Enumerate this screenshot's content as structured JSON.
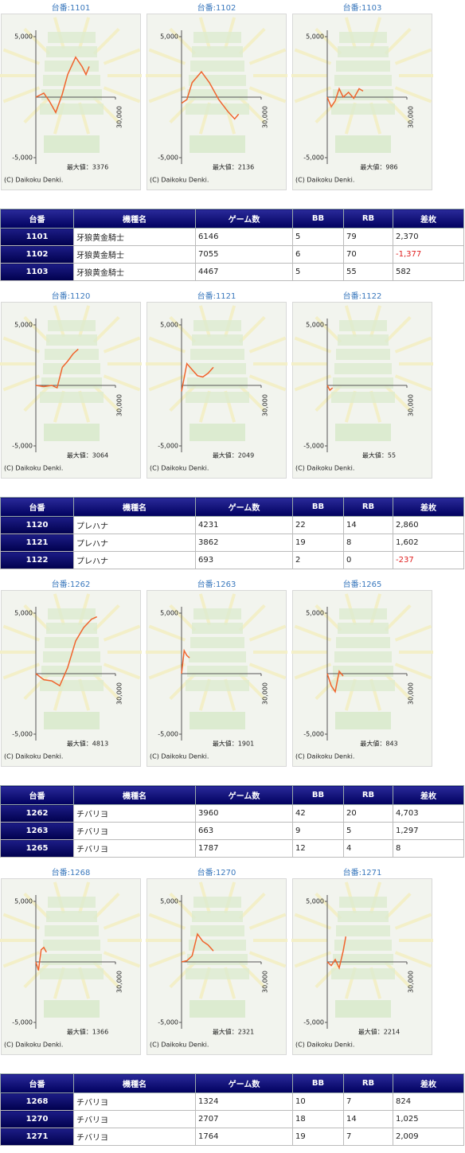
{
  "graph_axes": {
    "ylim": [
      -5000,
      5000
    ],
    "yticks": [
      {
        "value": 5000,
        "label": "5,000"
      },
      {
        "value": -5000,
        "label": "-5,000"
      }
    ],
    "xlim": [
      0,
      30000
    ],
    "xticks": [
      {
        "value": 30000,
        "label": "30,000"
      }
    ],
    "line_color": "#f0642d"
  },
  "groups": [
    {
      "graphs": [
        {
          "title": "台番:1101",
          "x": [
            0,
            3000,
            5100,
            7500,
            9900,
            12000,
            15000,
            17400,
            18900,
            20100
          ],
          "y": [
            0,
            330,
            -330,
            -1270,
            200,
            1870,
            3300,
            2530,
            1870,
            2530
          ],
          "max_label": "最大値：3376",
          "copyright": "(C) Daikoku Denki."
        },
        {
          "title": "台番:1102",
          "x": [
            0,
            2000,
            4000,
            7500,
            10500,
            14000,
            17500,
            20000,
            21500
          ],
          "y": [
            -500,
            -200,
            1200,
            2100,
            1200,
            -200,
            -1200,
            -1800,
            -1400
          ],
          "max_label": "最大値：2136",
          "copyright": "(C) Daikoku Denki."
        },
        {
          "title": "台番:1103",
          "x": [
            0,
            1500,
            3000,
            4500,
            6000,
            8000,
            10000,
            12000,
            13500
          ],
          "y": [
            0,
            -800,
            -300,
            700,
            0,
            400,
            -100,
            700,
            500
          ],
          "max_label": "最大値：986",
          "copyright": "(C) Daikoku Denki."
        }
      ],
      "table": {
        "header": [
          "台番",
          "機種名",
          "ゲーム数",
          "BB",
          "RB",
          "差枚"
        ],
        "rows": [
          [
            "1101",
            "牙狼黄金騎士",
            "6146",
            "5",
            "79",
            "2,370"
          ],
          [
            "1102",
            "牙狼黄金騎士",
            "7055",
            "6",
            "70",
            "-1,377"
          ],
          [
            "1103",
            "牙狼黄金騎士",
            "4467",
            "5",
            "55",
            "582"
          ]
        ]
      }
    },
    {
      "graphs": [
        {
          "title": "台番:1120",
          "x": [
            0,
            3000,
            6000,
            8000,
            10000,
            12000,
            14000,
            16000
          ],
          "y": [
            0,
            -100,
            0,
            -200,
            1500,
            2000,
            2600,
            3000
          ],
          "max_label": "最大値：3064",
          "copyright": "(C) Daikoku Denki."
        },
        {
          "title": "台番:1121",
          "x": [
            0,
            2000,
            4000,
            6000,
            8000,
            10000,
            12000
          ],
          "y": [
            -500,
            1800,
            1300,
            800,
            700,
            1000,
            1500
          ],
          "max_label": "最大値：2049",
          "copyright": "(C) Daikoku Denki."
        },
        {
          "title": "台番:1122",
          "x": [
            0,
            1000,
            2000
          ],
          "y": [
            0,
            -400,
            -200
          ],
          "max_label": "最大値：55",
          "copyright": "(C) Daikoku Denki."
        }
      ],
      "table": {
        "header": [
          "台番",
          "機種名",
          "ゲーム数",
          "BB",
          "RB",
          "差枚"
        ],
        "rows": [
          [
            "1120",
            "プレハナ",
            "4231",
            "22",
            "14",
            "2,860"
          ],
          [
            "1121",
            "プレハナ",
            "3862",
            "19",
            "8",
            "1,602"
          ],
          [
            "1122",
            "プレハナ",
            "693",
            "2",
            "0",
            "-237"
          ]
        ]
      }
    },
    {
      "graphs": [
        {
          "title": "台番:1262",
          "x": [
            0,
            3000,
            6000,
            9000,
            12000,
            15000,
            18000,
            21000,
            23000
          ],
          "y": [
            0,
            -500,
            -600,
            -1000,
            500,
            2700,
            3800,
            4500,
            4700
          ],
          "max_label": "最大値：4813",
          "copyright": "(C) Daikoku Denki."
        },
        {
          "title": "台番:1263",
          "x": [
            0,
            1000,
            2000,
            3000
          ],
          "y": [
            0,
            1900,
            1500,
            1300
          ],
          "max_label": "最大値：1901",
          "copyright": "(C) Daikoku Denki."
        },
        {
          "title": "台番:1265",
          "x": [
            0,
            1500,
            3000,
            4500,
            6000
          ],
          "y": [
            0,
            -1000,
            -1500,
            200,
            -200
          ],
          "max_label": "最大値：843",
          "copyright": "(C) Daikoku Denki."
        }
      ],
      "table": {
        "header": [
          "台番",
          "機種名",
          "ゲーム数",
          "BB",
          "RB",
          "差枚"
        ],
        "rows": [
          [
            "1262",
            "チバリヨ",
            "3960",
            "42",
            "20",
            "4,703"
          ],
          [
            "1263",
            "チバリヨ",
            "663",
            "9",
            "5",
            "1,297"
          ],
          [
            "1265",
            "チバリヨ",
            "1787",
            "12",
            "4",
            "8"
          ]
        ]
      }
    },
    {
      "graphs": [
        {
          "title": "台番:1268",
          "x": [
            0,
            1000,
            2000,
            3000,
            4000
          ],
          "y": [
            0,
            -700,
            1000,
            1200,
            800
          ],
          "max_label": "最大値：1366",
          "copyright": "(C) Daikoku Denki."
        },
        {
          "title": "台番:1270",
          "x": [
            0,
            2000,
            4000,
            6000,
            8000,
            10000,
            12000
          ],
          "y": [
            0,
            100,
            500,
            2300,
            1700,
            1400,
            900
          ],
          "max_label": "最大値：2321",
          "copyright": "(C) Daikoku Denki."
        },
        {
          "title": "台番:1271",
          "x": [
            0,
            1500,
            3000,
            4500,
            6000,
            7000
          ],
          "y": [
            0,
            -300,
            200,
            -500,
            900,
            2100
          ],
          "max_label": "最大値：2214",
          "copyright": "(C) Daikoku Denki."
        }
      ],
      "table": {
        "header": [
          "台番",
          "機種名",
          "ゲーム数",
          "BB",
          "RB",
          "差枚"
        ],
        "rows": [
          [
            "1268",
            "チバリヨ",
            "1324",
            "10",
            "7",
            "824"
          ],
          [
            "1270",
            "チバリヨ",
            "2707",
            "18",
            "14",
            "1,025"
          ],
          [
            "1271",
            "チバリヨ",
            "1764",
            "19",
            "7",
            "2,009"
          ]
        ]
      }
    }
  ]
}
